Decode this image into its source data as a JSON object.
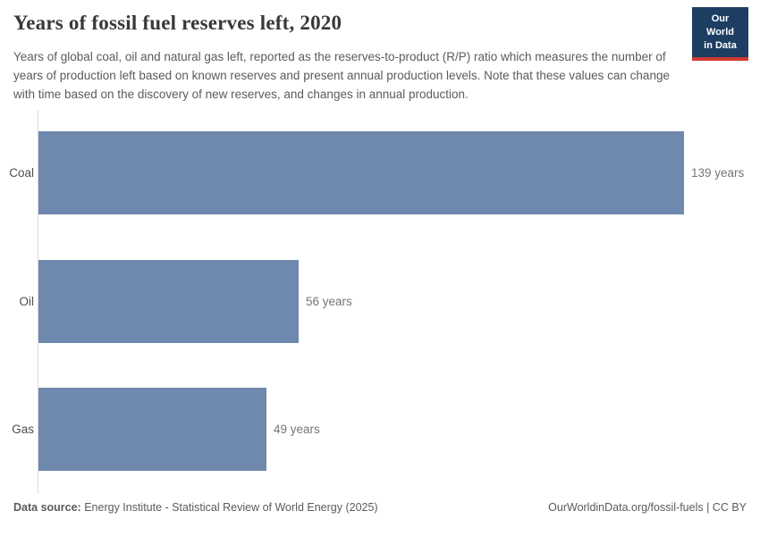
{
  "header": {
    "title": "Years of fossil fuel reserves left, 2020",
    "subtitle": "Years of global coal, oil and natural gas left, reported as the reserves-to-product (R/P) ratio which measures the number of years of production left based on known reserves and present annual production levels. Note that these values can change with time based on the discovery of new reserves, and changes in annual production.",
    "logo": {
      "line1": "Our World",
      "line2": "in Data"
    }
  },
  "chart_data": {
    "type": "bar",
    "orientation": "horizontal",
    "title": "Years of fossil fuel reserves left, 2020",
    "categories": [
      "Coal",
      "Oil",
      "Gas"
    ],
    "values": [
      139,
      56,
      49
    ],
    "value_labels": [
      "139 years",
      "56 years",
      "49 years"
    ],
    "unit": "years",
    "xlabel": "",
    "ylabel": "",
    "xlim": [
      0,
      139
    ],
    "grid": false,
    "legend": "none",
    "bar_color": "#6f88ad",
    "axis_color": "#dcdcdc"
  },
  "footer": {
    "source_label": "Data source:",
    "source_text": " Energy Institute - Statistical Review of World Energy (2025)",
    "link_text": "OurWorldinData.org/fossil-fuels | CC BY"
  }
}
